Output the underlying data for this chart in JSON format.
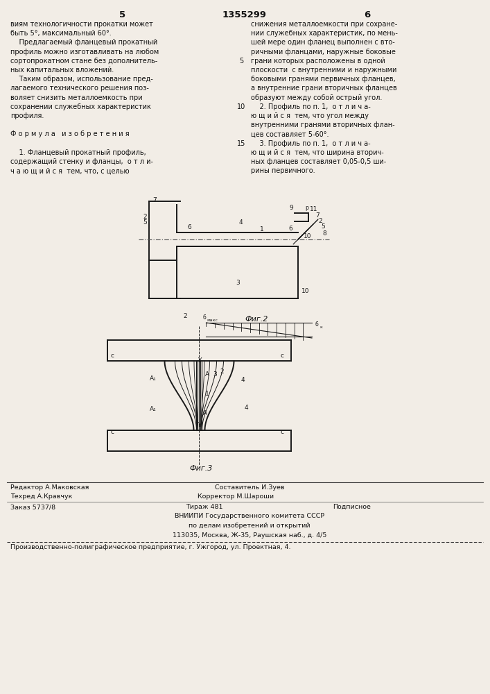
{
  "bg_color": "#f2ede6",
  "page_width": 7.07,
  "page_height": 10.0,
  "top_header": {
    "left_num": "5",
    "center_num": "1355299",
    "right_num": "6"
  },
  "left_col_lines": [
    "виям технологичности прокатки может",
    "быть 5°, максимальный 60°.",
    "    Предлагаемый фланцевый прокатный",
    "профиль можно изготавливать на любом",
    "сортопрокатном стане без дополнитель-",
    "ных капитальных вложений.",
    "    Таким образом, использование пред-",
    "лагаемого технического решения поз-",
    "воляет снизить металлоемкость при",
    "сохранении служебных характеристик",
    "профиля.",
    "",
    "Ф о р м у л а   и з о б р е т е н и я",
    "",
    "    1. Фланцевый прокатный профиль,",
    "содержащий стенку и фланцы,  о т л и-",
    "ч а ю щ и й с я  тем, что, с целью"
  ],
  "right_col_lines": [
    "снижения металлоемкости при сохране-",
    "нии служебных характеристик, по мень-",
    "шей мере один фланец выполнен с вто-",
    "ричными фланцами, наружные боковые",
    "грани которых расположены в одной",
    "плоскости  с внутренними и наружными",
    "боковыми гранями первичных фланцев,",
    "а внутренние грани вторичных фланцев",
    "образуют между собой острый угол.",
    "    2. Профиль по п. 1,  о т л и ч а-",
    "ю щ и й с я  тем, что угол между",
    "внутренними гранями вторичных флан-",
    "цев составляет 5-60°.",
    "    3. Профиль по п. 1,  о т л и ч а-",
    "ю щ и й с я  тем, что ширина вторич-",
    "ных фланцев составляет 0,05-0,5 ши-",
    "рины первичного."
  ],
  "right_col_linenos": [
    "",
    "",
    "",
    "",
    "5",
    "",
    "",
    "",
    "",
    "10",
    "",
    "",
    "",
    "15",
    "",
    "",
    ""
  ],
  "fig2_caption": "Фиг.2",
  "fig3_caption": "Фиг.3",
  "footer_editor": "Редактор А.Маковская",
  "footer_composer": "Составитель И.Зуев",
  "footer_techred": "Техред А.Кравчук",
  "footer_corrector": "Корректор М.Шароши",
  "footer_order": "Заказ 5737/8",
  "footer_print": "Тираж 481",
  "footer_type": "Подписное",
  "footer_org1": "ВНИИПИ Государственного комитета СССР",
  "footer_org2": "по делам изобретений и открытий",
  "footer_org3": "113035, Москва, Ж-35, Раушская наб., д. 4/5",
  "footer_prod": "Производственно-полиграфическое предприятие, г. Ужгород, ул. Проектная, 4."
}
